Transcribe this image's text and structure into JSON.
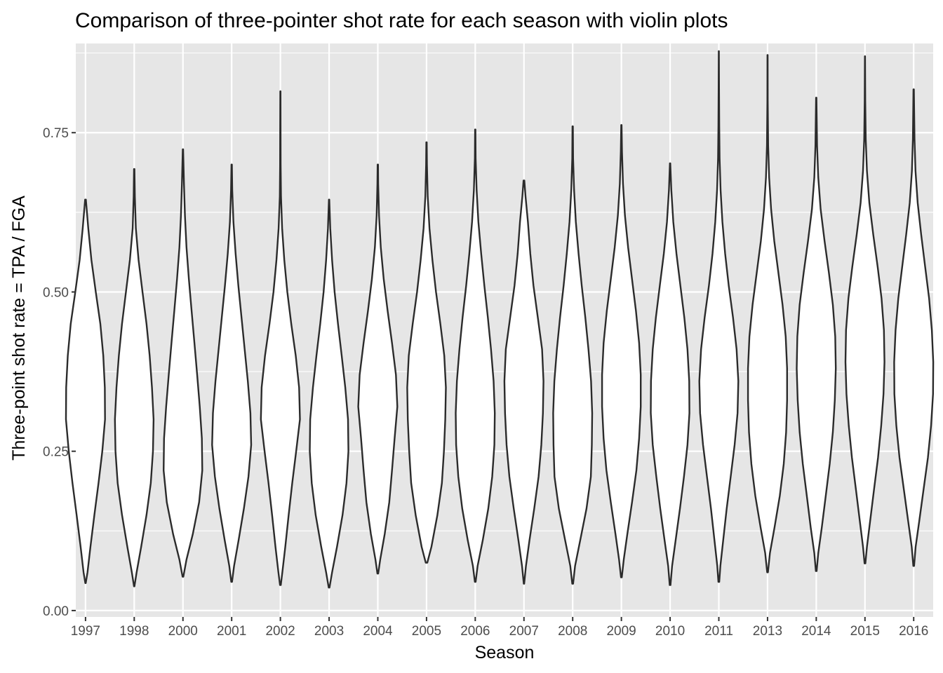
{
  "chart_data": {
    "type": "violin",
    "title": "Comparison of three-pointer shot rate for each season with violin plots",
    "xlabel": "Season",
    "ylabel": "Three-point shot rate = TPA / FGA",
    "ylim": [
      -0.01,
      0.89
    ],
    "yticks": [
      0.0,
      0.25,
      0.5,
      0.75
    ],
    "ytick_labels": [
      "0.00",
      "0.25",
      "0.50",
      "0.75"
    ],
    "grid": true,
    "legend": "none",
    "colors": {
      "panel": "#e6e6e6",
      "grid": "#ffffff",
      "outline": "#2b2b2b",
      "fill": "#ffffff"
    },
    "categories": [
      "1997",
      "1998",
      "2000",
      "2001",
      "2002",
      "2003",
      "2004",
      "2005",
      "2006",
      "2007",
      "2008",
      "2009",
      "2010",
      "2011",
      "2013",
      "2014",
      "2015",
      "2016"
    ],
    "violins": [
      {
        "season": "1997",
        "min": 0.043,
        "max": 0.645,
        "profile": [
          [
            0.043,
            0.01
          ],
          [
            0.06,
            0.1
          ],
          [
            0.1,
            0.25
          ],
          [
            0.15,
            0.45
          ],
          [
            0.2,
            0.66
          ],
          [
            0.25,
            0.85
          ],
          [
            0.3,
            0.99
          ],
          [
            0.35,
            0.98
          ],
          [
            0.4,
            0.9
          ],
          [
            0.45,
            0.75
          ],
          [
            0.5,
            0.52
          ],
          [
            0.55,
            0.3
          ],
          [
            0.6,
            0.14
          ],
          [
            0.645,
            0.02
          ]
        ]
      },
      {
        "season": "1998",
        "min": 0.038,
        "max": 0.693,
        "profile": [
          [
            0.038,
            0.01
          ],
          [
            0.06,
            0.12
          ],
          [
            0.1,
            0.35
          ],
          [
            0.15,
            0.62
          ],
          [
            0.2,
            0.84
          ],
          [
            0.25,
            0.95
          ],
          [
            0.3,
            0.98
          ],
          [
            0.35,
            0.9
          ],
          [
            0.4,
            0.78
          ],
          [
            0.45,
            0.62
          ],
          [
            0.5,
            0.42
          ],
          [
            0.55,
            0.22
          ],
          [
            0.6,
            0.08
          ],
          [
            0.65,
            0.03
          ],
          [
            0.693,
            0.01
          ]
        ]
      },
      {
        "season": "2000",
        "min": 0.053,
        "max": 0.724,
        "profile": [
          [
            0.053,
            0.02
          ],
          [
            0.08,
            0.18
          ],
          [
            0.12,
            0.5
          ],
          [
            0.17,
            0.82
          ],
          [
            0.22,
            0.98
          ],
          [
            0.27,
            0.96
          ],
          [
            0.32,
            0.85
          ],
          [
            0.37,
            0.72
          ],
          [
            0.42,
            0.58
          ],
          [
            0.47,
            0.44
          ],
          [
            0.52,
            0.3
          ],
          [
            0.57,
            0.18
          ],
          [
            0.62,
            0.1
          ],
          [
            0.67,
            0.05
          ],
          [
            0.724,
            0.01
          ]
        ]
      },
      {
        "season": "2001",
        "min": 0.045,
        "max": 0.7,
        "profile": [
          [
            0.045,
            0.02
          ],
          [
            0.07,
            0.12
          ],
          [
            0.11,
            0.35
          ],
          [
            0.16,
            0.62
          ],
          [
            0.21,
            0.85
          ],
          [
            0.26,
            0.99
          ],
          [
            0.31,
            0.95
          ],
          [
            0.36,
            0.82
          ],
          [
            0.41,
            0.66
          ],
          [
            0.46,
            0.5
          ],
          [
            0.51,
            0.34
          ],
          [
            0.56,
            0.2
          ],
          [
            0.61,
            0.09
          ],
          [
            0.66,
            0.03
          ],
          [
            0.7,
            0.01
          ]
        ]
      },
      {
        "season": "2002",
        "min": 0.04,
        "max": 0.815,
        "profile": [
          [
            0.04,
            0.02
          ],
          [
            0.06,
            0.1
          ],
          [
            0.1,
            0.25
          ],
          [
            0.15,
            0.42
          ],
          [
            0.2,
            0.6
          ],
          [
            0.25,
            0.8
          ],
          [
            0.3,
            0.99
          ],
          [
            0.35,
            0.95
          ],
          [
            0.4,
            0.78
          ],
          [
            0.45,
            0.55
          ],
          [
            0.5,
            0.35
          ],
          [
            0.55,
            0.2
          ],
          [
            0.6,
            0.09
          ],
          [
            0.65,
            0.03
          ],
          [
            0.7,
            0.015
          ],
          [
            0.75,
            0.01
          ],
          [
            0.815,
            0.005
          ]
        ]
      },
      {
        "season": "2003",
        "min": 0.036,
        "max": 0.645,
        "profile": [
          [
            0.036,
            0.02
          ],
          [
            0.06,
            0.15
          ],
          [
            0.1,
            0.4
          ],
          [
            0.15,
            0.68
          ],
          [
            0.2,
            0.88
          ],
          [
            0.25,
            0.98
          ],
          [
            0.3,
            0.96
          ],
          [
            0.35,
            0.82
          ],
          [
            0.4,
            0.64
          ],
          [
            0.45,
            0.45
          ],
          [
            0.5,
            0.28
          ],
          [
            0.55,
            0.15
          ],
          [
            0.6,
            0.06
          ],
          [
            0.645,
            0.01
          ]
        ]
      },
      {
        "season": "2004",
        "min": 0.058,
        "max": 0.7,
        "profile": [
          [
            0.058,
            0.02
          ],
          [
            0.08,
            0.12
          ],
          [
            0.12,
            0.35
          ],
          [
            0.17,
            0.58
          ],
          [
            0.22,
            0.72
          ],
          [
            0.27,
            0.85
          ],
          [
            0.32,
            0.99
          ],
          [
            0.37,
            0.92
          ],
          [
            0.42,
            0.72
          ],
          [
            0.47,
            0.5
          ],
          [
            0.52,
            0.3
          ],
          [
            0.57,
            0.15
          ],
          [
            0.62,
            0.06
          ],
          [
            0.67,
            0.02
          ],
          [
            0.7,
            0.01
          ]
        ]
      },
      {
        "season": "2005",
        "min": 0.075,
        "max": 0.735,
        "profile": [
          [
            0.075,
            0.04
          ],
          [
            0.1,
            0.25
          ],
          [
            0.15,
            0.55
          ],
          [
            0.2,
            0.78
          ],
          [
            0.25,
            0.88
          ],
          [
            0.3,
            0.95
          ],
          [
            0.35,
            0.98
          ],
          [
            0.4,
            0.9
          ],
          [
            0.45,
            0.7
          ],
          [
            0.5,
            0.48
          ],
          [
            0.55,
            0.3
          ],
          [
            0.6,
            0.15
          ],
          [
            0.65,
            0.06
          ],
          [
            0.7,
            0.02
          ],
          [
            0.735,
            0.01
          ]
        ]
      },
      {
        "season": "2006",
        "min": 0.045,
        "max": 0.755,
        "profile": [
          [
            0.045,
            0.02
          ],
          [
            0.07,
            0.12
          ],
          [
            0.11,
            0.38
          ],
          [
            0.16,
            0.66
          ],
          [
            0.21,
            0.86
          ],
          [
            0.26,
            0.97
          ],
          [
            0.31,
            0.99
          ],
          [
            0.36,
            0.93
          ],
          [
            0.41,
            0.8
          ],
          [
            0.46,
            0.64
          ],
          [
            0.51,
            0.46
          ],
          [
            0.56,
            0.3
          ],
          [
            0.61,
            0.16
          ],
          [
            0.66,
            0.07
          ],
          [
            0.71,
            0.02
          ],
          [
            0.755,
            0.01
          ]
        ]
      },
      {
        "season": "2007",
        "min": 0.042,
        "max": 0.675,
        "profile": [
          [
            0.042,
            0.01
          ],
          [
            0.07,
            0.1
          ],
          [
            0.11,
            0.28
          ],
          [
            0.16,
            0.52
          ],
          [
            0.21,
            0.74
          ],
          [
            0.26,
            0.88
          ],
          [
            0.31,
            0.96
          ],
          [
            0.36,
            0.99
          ],
          [
            0.41,
            0.92
          ],
          [
            0.46,
            0.7
          ],
          [
            0.51,
            0.48
          ],
          [
            0.56,
            0.32
          ],
          [
            0.61,
            0.2
          ],
          [
            0.65,
            0.08
          ],
          [
            0.675,
            0.02
          ]
        ]
      },
      {
        "season": "2008",
        "min": 0.042,
        "max": 0.76,
        "profile": [
          [
            0.042,
            0.02
          ],
          [
            0.07,
            0.12
          ],
          [
            0.11,
            0.38
          ],
          [
            0.16,
            0.7
          ],
          [
            0.21,
            0.92
          ],
          [
            0.26,
            0.97
          ],
          [
            0.31,
            0.99
          ],
          [
            0.36,
            0.93
          ],
          [
            0.41,
            0.8
          ],
          [
            0.46,
            0.64
          ],
          [
            0.51,
            0.46
          ],
          [
            0.56,
            0.3
          ],
          [
            0.61,
            0.16
          ],
          [
            0.66,
            0.07
          ],
          [
            0.71,
            0.02
          ],
          [
            0.76,
            0.01
          ]
        ]
      },
      {
        "season": "2009",
        "min": 0.052,
        "max": 0.762,
        "profile": [
          [
            0.052,
            0.02
          ],
          [
            0.08,
            0.12
          ],
          [
            0.12,
            0.3
          ],
          [
            0.17,
            0.54
          ],
          [
            0.22,
            0.76
          ],
          [
            0.27,
            0.9
          ],
          [
            0.32,
            0.98
          ],
          [
            0.37,
            0.98
          ],
          [
            0.42,
            0.9
          ],
          [
            0.47,
            0.74
          ],
          [
            0.52,
            0.54
          ],
          [
            0.57,
            0.34
          ],
          [
            0.62,
            0.18
          ],
          [
            0.67,
            0.08
          ],
          [
            0.72,
            0.03
          ],
          [
            0.762,
            0.01
          ]
        ]
      },
      {
        "season": "2010",
        "min": 0.04,
        "max": 0.702,
        "profile": [
          [
            0.04,
            0.02
          ],
          [
            0.07,
            0.1
          ],
          [
            0.11,
            0.28
          ],
          [
            0.16,
            0.5
          ],
          [
            0.21,
            0.7
          ],
          [
            0.26,
            0.88
          ],
          [
            0.31,
            0.98
          ],
          [
            0.36,
            0.97
          ],
          [
            0.41,
            0.88
          ],
          [
            0.46,
            0.72
          ],
          [
            0.51,
            0.52
          ],
          [
            0.56,
            0.32
          ],
          [
            0.61,
            0.16
          ],
          [
            0.66,
            0.06
          ],
          [
            0.702,
            0.01
          ]
        ]
      },
      {
        "season": "2011",
        "min": 0.045,
        "max": 0.878,
        "profile": [
          [
            0.045,
            0.02
          ],
          [
            0.07,
            0.08
          ],
          [
            0.11,
            0.22
          ],
          [
            0.16,
            0.4
          ],
          [
            0.21,
            0.6
          ],
          [
            0.26,
            0.8
          ],
          [
            0.31,
            0.95
          ],
          [
            0.36,
            0.99
          ],
          [
            0.41,
            0.9
          ],
          [
            0.46,
            0.72
          ],
          [
            0.51,
            0.5
          ],
          [
            0.56,
            0.32
          ],
          [
            0.61,
            0.18
          ],
          [
            0.66,
            0.09
          ],
          [
            0.71,
            0.04
          ],
          [
            0.76,
            0.02
          ],
          [
            0.82,
            0.01
          ],
          [
            0.878,
            0.005
          ]
        ]
      },
      {
        "season": "2013",
        "min": 0.06,
        "max": 0.872,
        "profile": [
          [
            0.06,
            0.02
          ],
          [
            0.09,
            0.12
          ],
          [
            0.13,
            0.35
          ],
          [
            0.18,
            0.62
          ],
          [
            0.23,
            0.82
          ],
          [
            0.28,
            0.94
          ],
          [
            0.33,
            0.99
          ],
          [
            0.38,
            0.99
          ],
          [
            0.43,
            0.92
          ],
          [
            0.48,
            0.76
          ],
          [
            0.53,
            0.55
          ],
          [
            0.58,
            0.34
          ],
          [
            0.63,
            0.18
          ],
          [
            0.68,
            0.08
          ],
          [
            0.73,
            0.03
          ],
          [
            0.8,
            0.01
          ],
          [
            0.872,
            0.005
          ]
        ]
      },
      {
        "season": "2014",
        "min": 0.062,
        "max": 0.805,
        "profile": [
          [
            0.062,
            0.02
          ],
          [
            0.09,
            0.1
          ],
          [
            0.13,
            0.28
          ],
          [
            0.18,
            0.48
          ],
          [
            0.23,
            0.68
          ],
          [
            0.28,
            0.84
          ],
          [
            0.33,
            0.94
          ],
          [
            0.38,
            0.99
          ],
          [
            0.43,
            0.96
          ],
          [
            0.48,
            0.84
          ],
          [
            0.53,
            0.64
          ],
          [
            0.58,
            0.42
          ],
          [
            0.63,
            0.22
          ],
          [
            0.68,
            0.1
          ],
          [
            0.73,
            0.04
          ],
          [
            0.805,
            0.01
          ]
        ]
      },
      {
        "season": "2015",
        "min": 0.074,
        "max": 0.87,
        "profile": [
          [
            0.074,
            0.02
          ],
          [
            0.1,
            0.1
          ],
          [
            0.14,
            0.26
          ],
          [
            0.19,
            0.46
          ],
          [
            0.24,
            0.66
          ],
          [
            0.29,
            0.82
          ],
          [
            0.34,
            0.94
          ],
          [
            0.39,
            0.99
          ],
          [
            0.44,
            0.96
          ],
          [
            0.49,
            0.84
          ],
          [
            0.54,
            0.64
          ],
          [
            0.59,
            0.42
          ],
          [
            0.64,
            0.22
          ],
          [
            0.69,
            0.1
          ],
          [
            0.74,
            0.04
          ],
          [
            0.8,
            0.015
          ],
          [
            0.87,
            0.005
          ]
        ]
      },
      {
        "season": "2016",
        "min": 0.07,
        "max": 0.818,
        "profile": [
          [
            0.07,
            0.02
          ],
          [
            0.1,
            0.1
          ],
          [
            0.14,
            0.28
          ],
          [
            0.19,
            0.5
          ],
          [
            0.24,
            0.72
          ],
          [
            0.29,
            0.88
          ],
          [
            0.34,
            0.98
          ],
          [
            0.39,
            0.99
          ],
          [
            0.44,
            0.92
          ],
          [
            0.49,
            0.78
          ],
          [
            0.54,
            0.58
          ],
          [
            0.59,
            0.38
          ],
          [
            0.64,
            0.2
          ],
          [
            0.69,
            0.09
          ],
          [
            0.74,
            0.04
          ],
          [
            0.818,
            0.01
          ]
        ]
      }
    ]
  }
}
